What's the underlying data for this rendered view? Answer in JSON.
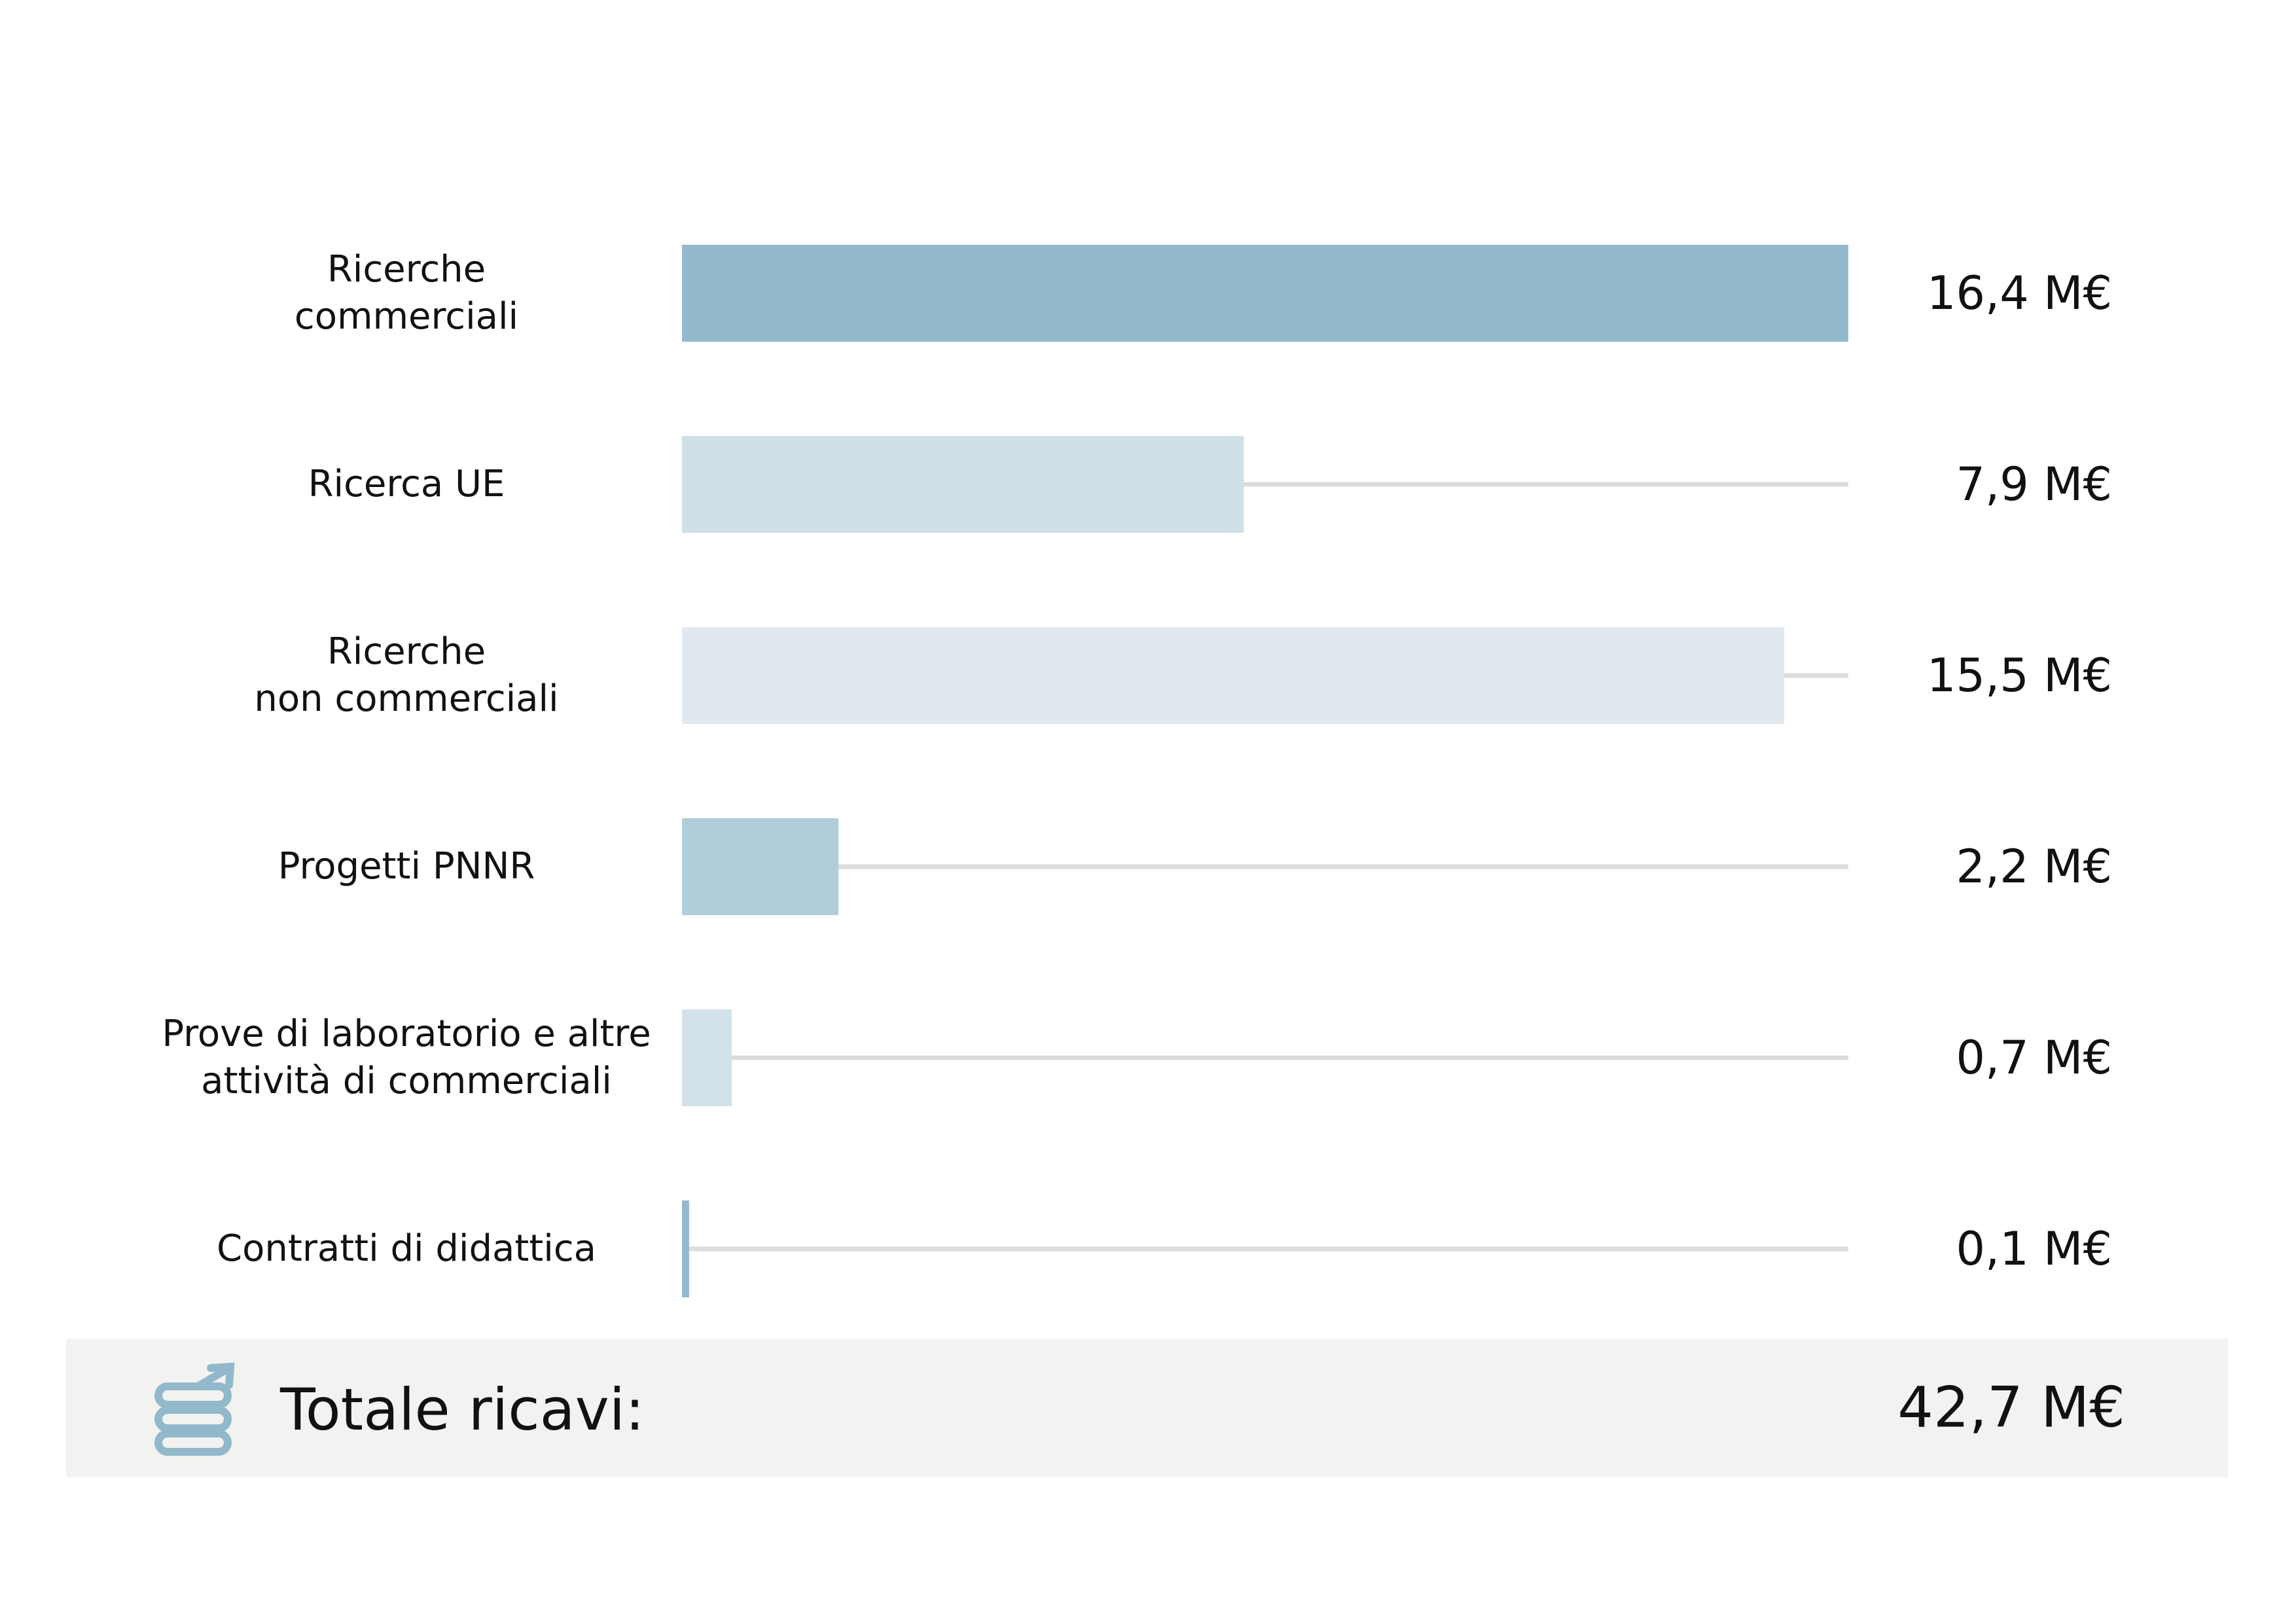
{
  "chart_data": {
    "type": "bar",
    "orientation": "horizontal",
    "categories": [
      "Ricerche\ncommerciali",
      "Ricerca UE",
      "Ricerche\nnon commerciali",
      "Progetti PNNR",
      "Prove di laboratorio e altre\nattività di commerciali",
      "Contratti di didattica"
    ],
    "values": [
      16.4,
      7.9,
      15.5,
      2.2,
      0.7,
      0.1
    ],
    "value_labels": [
      "16,4 M€",
      "7,9 M€",
      "15,5 M€",
      "2,2 M€",
      "0,7 M€",
      "0,1 M€"
    ],
    "colors": [
      "#92b9cb",
      "#d0e0e8",
      "#e1e8ef",
      "#b0cdda",
      "#d3e2ea",
      "#92b9cb"
    ],
    "xlim": [
      0,
      16.4
    ],
    "total_label": "Totale ricavi:",
    "total": "42,7 M€"
  }
}
